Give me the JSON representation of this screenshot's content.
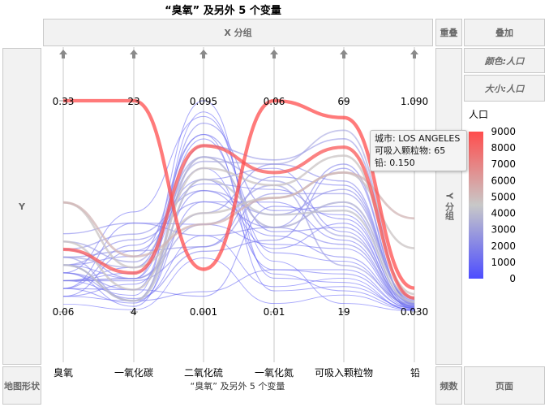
{
  "title": "“臭氧” 及另外 5 个变量",
  "zones": {
    "x_group": "X 分组",
    "overlap": "重叠",
    "overlay": "叠加",
    "color": "颜色:人口",
    "size": "大小:人口",
    "y": "Y",
    "y_group": "Y 分组",
    "map_shape": "地图形状",
    "freq": "频数",
    "page": "页面"
  },
  "x_axis_title": "“臭氧” 及另外 5 个变量",
  "tooltip": {
    "city": "城市: LOS ANGELES",
    "pm": "可吸入颗粒物: 65",
    "lead": "铅: 0.150"
  },
  "legend": {
    "title": "人口",
    "ticks": [
      "9000",
      "8000",
      "7000",
      "6000",
      "5000",
      "4000",
      "3000",
      "2000",
      "1000",
      "0"
    ],
    "colors": [
      "#ff4d4d",
      "#c8c8c8",
      "#4d4dff"
    ]
  },
  "chart_data": {
    "type": "parallel-coordinates",
    "title": "“臭氧” 及另外 5 个变量",
    "xlabel": "“臭氧” 及另外 5 个变量",
    "variables": [
      "臭氧",
      "一氧化碳",
      "二氧化硫",
      "一氧化氮",
      "可吸入颗粒物",
      "铅"
    ],
    "axis_max_labels": [
      "0.33",
      "23",
      "0.095",
      "0.06",
      "69",
      "1.090"
    ],
    "axis_min_labels": [
      "0.06",
      "4",
      "0.001",
      "0.01",
      "19",
      "0.030"
    ],
    "ranges": [
      [
        0.06,
        0.33
      ],
      [
        4,
        23
      ],
      [
        0.001,
        0.095
      ],
      [
        0.01,
        0.06
      ],
      [
        19,
        69
      ],
      [
        0.03,
        1.09
      ]
    ],
    "color_by": "人口",
    "color_range": [
      0,
      9000
    ],
    "lines": [
      {
        "values": [
          0.33,
          23,
          0.02,
          0.06,
          65,
          0.15
        ],
        "pop": 9000
      },
      {
        "values": [
          0.14,
          7.5,
          0.075,
          0.043,
          58,
          0.1
        ],
        "pop": 8600
      },
      {
        "values": [
          0.2,
          9,
          0.04,
          0.037,
          52,
          0.5
        ],
        "pop": 5200
      },
      {
        "values": [
          0.2,
          8,
          0.045,
          0.037,
          52,
          0.35
        ],
        "pop": 4700
      },
      {
        "values": [
          0.12,
          5,
          0.07,
          0.03,
          45,
          0.1
        ],
        "pop": 3500
      },
      {
        "values": [
          0.12,
          5,
          0.06,
          0.033,
          43,
          0.08
        ],
        "pop": 4200
      },
      {
        "values": [
          0.15,
          6,
          0.065,
          0.04,
          56,
          0.12
        ],
        "pop": 4700
      },
      {
        "values": [
          0.1,
          7,
          0.04,
          0.04,
          30,
          0.07
        ],
        "pop": 2500
      },
      {
        "values": [
          0.09,
          10,
          0.06,
          0.044,
          38,
          0.05
        ],
        "pop": 1300
      },
      {
        "values": [
          0.16,
          12,
          0.035,
          0.03,
          35,
          0.06
        ],
        "pop": 1600
      },
      {
        "values": [
          0.12,
          5,
          0.01,
          0.02,
          28,
          0.05
        ],
        "pop": 1000
      },
      {
        "values": [
          0.09,
          6,
          0.008,
          0.035,
          42,
          0.055
        ],
        "pop": 1100
      },
      {
        "values": [
          0.14,
          7,
          0.045,
          0.045,
          50,
          0.075
        ],
        "pop": 1800
      },
      {
        "values": [
          0.1,
          7,
          0.095,
          0.018,
          26,
          0.042
        ],
        "pop": 800
      },
      {
        "values": [
          0.1,
          8,
          0.08,
          0.015,
          25,
          0.05
        ],
        "pop": 700
      },
      {
        "values": [
          0.11,
          4.5,
          0.06,
          0.025,
          40,
          0.045
        ],
        "pop": 900
      },
      {
        "values": [
          0.08,
          6.5,
          0.055,
          0.028,
          32,
          0.06
        ],
        "pop": 1200
      },
      {
        "values": [
          0.13,
          9.5,
          0.03,
          0.038,
          47,
          0.09
        ],
        "pop": 2100
      },
      {
        "values": [
          0.1,
          5.5,
          0.09,
          0.022,
          21,
          0.035
        ],
        "pop": 500
      },
      {
        "values": [
          0.12,
          10.5,
          0.05,
          0.03,
          54,
          0.065
        ],
        "pop": 1700
      },
      {
        "values": [
          0.07,
          4.2,
          0.025,
          0.012,
          23,
          0.04
        ],
        "pop": 400
      },
      {
        "values": [
          0.15,
          8.5,
          0.07,
          0.041,
          37,
          0.08
        ],
        "pop": 2600
      },
      {
        "values": [
          0.11,
          6,
          0.085,
          0.034,
          44,
          0.07
        ],
        "pop": 1500
      },
      {
        "values": [
          0.09,
          12,
          0.04,
          0.026,
          34,
          0.055
        ],
        "pop": 1000
      },
      {
        "values": [
          0.13,
          5,
          0.075,
          0.046,
          60,
          0.1
        ],
        "pop": 2300
      },
      {
        "values": [
          0.1,
          7.5,
          0.065,
          0.02,
          29,
          0.048
        ],
        "pop": 600
      },
      {
        "values": [
          0.14,
          11,
          0.055,
          0.033,
          48,
          0.085
        ],
        "pop": 1900
      },
      {
        "values": [
          0.08,
          5,
          0.035,
          0.016,
          27,
          0.038
        ],
        "pop": 450
      },
      {
        "values": [
          0.12,
          9,
          0.08,
          0.029,
          39,
          0.062
        ],
        "pop": 1400
      },
      {
        "values": [
          0.09,
          4.8,
          0.05,
          0.036,
          36,
          0.058
        ],
        "pop": 1100
      },
      {
        "values": [
          0.11,
          13,
          0.088,
          0.024,
          31,
          0.052
        ],
        "pop": 850
      },
      {
        "values": [
          0.1,
          6.8,
          0.03,
          0.042,
          49,
          0.078
        ],
        "pop": 1300
      },
      {
        "values": [
          0.13,
          8,
          0.068,
          0.045,
          62,
          0.095
        ],
        "pop": 2800
      },
      {
        "values": [
          0.12,
          7,
          0.078,
          0.019,
          24,
          0.044
        ],
        "pop": 750
      },
      {
        "values": [
          0.08,
          9.5,
          0.058,
          0.039,
          41,
          0.068
        ],
        "pop": 950
      },
      {
        "values": [
          0.11,
          5.2,
          0.028,
          0.027,
          53,
          0.072
        ],
        "pop": 1600
      }
    ]
  }
}
